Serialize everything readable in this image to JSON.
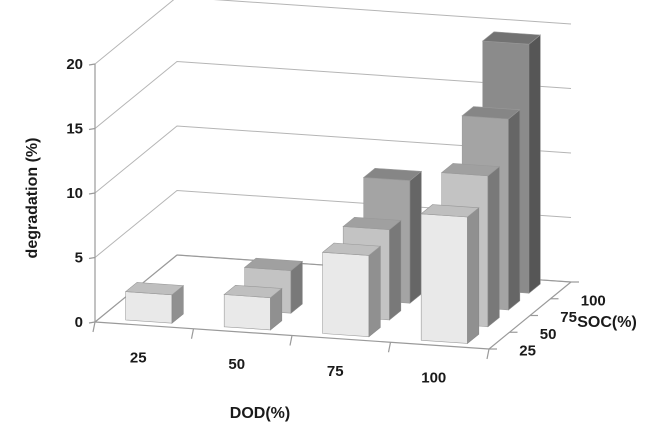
{
  "chart_data": {
    "type": "bar3d",
    "title": "",
    "ylabel": "degradation (%)",
    "xlabel": "DOD(%)",
    "zlabel": "SOC(%)",
    "ylim": [
      0,
      20
    ],
    "y_ticks": [
      "0",
      "5",
      "10",
      "15",
      "20"
    ],
    "x_categories": [
      "25",
      "50",
      "75",
      "100"
    ],
    "z_categories": [
      "25",
      "50",
      "75",
      "100"
    ],
    "grid": true,
    "legend": "none",
    "bars": [
      {
        "dod": "25",
        "soc": "25",
        "value": 2.2
      },
      {
        "dod": "50",
        "soc": "25",
        "value": 2.5
      },
      {
        "dod": "50",
        "soc": "50",
        "value": 3.3
      },
      {
        "dod": "75",
        "soc": "25",
        "value": 6.3
      },
      {
        "dod": "75",
        "soc": "50",
        "value": 7.0
      },
      {
        "dod": "75",
        "soc": "75",
        "value": 9.5
      },
      {
        "dod": "100",
        "soc": "25",
        "value": 9.8
      },
      {
        "dod": "100",
        "soc": "50",
        "value": 11.7
      },
      {
        "dod": "100",
        "soc": "75",
        "value": 14.8
      },
      {
        "dod": "100",
        "soc": "100",
        "value": 19.3
      }
    ],
    "series_colors": {
      "25": "#e9e9e9",
      "50": "#c3c3c3",
      "75": "#a4a4a4",
      "100": "#8b8b8b"
    }
  }
}
